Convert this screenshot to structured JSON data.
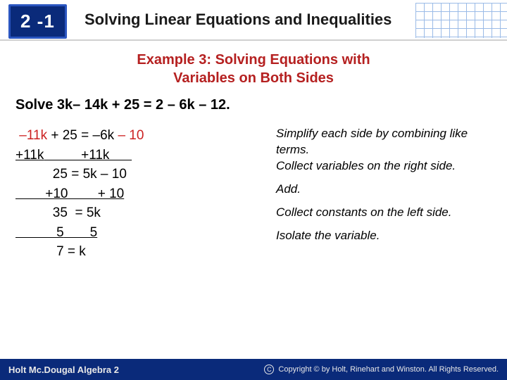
{
  "header": {
    "section": "2 -1",
    "title": "Solving Linear Equations and Inequalities"
  },
  "example": {
    "title_line1": "Example 3: Solving Equations with",
    "title_line2": "Variables on Both Sides",
    "problem": "Solve 3k– 14k + 25 = 2 – 6k – 12."
  },
  "steps": {
    "s1a": " –11k",
    "s1b": " + 25 = –6k ",
    "s1c": "– 10",
    "s2a": "+11k",
    "s2b": "          +11k      ",
    "s3": "          25 = 5k – 10",
    "s4a": "        +10",
    "s4b": "        + 10",
    "s5": "          35  = 5k",
    "s6a": "           5",
    "s6b": "       5",
    "s7": "           7 = k"
  },
  "explain": {
    "e1a": "Simplify each side by combining like terms.",
    "e1b": "Collect variables on the right side.",
    "e2": "Add.",
    "e3": "Collect constants on the left side.",
    "e4": "Isolate the variable."
  },
  "footer": {
    "left": "Holt Mc.Dougal Algebra 2",
    "right": "Copyright © by Holt, Rinehart and Winston. All Rights Reserved."
  }
}
